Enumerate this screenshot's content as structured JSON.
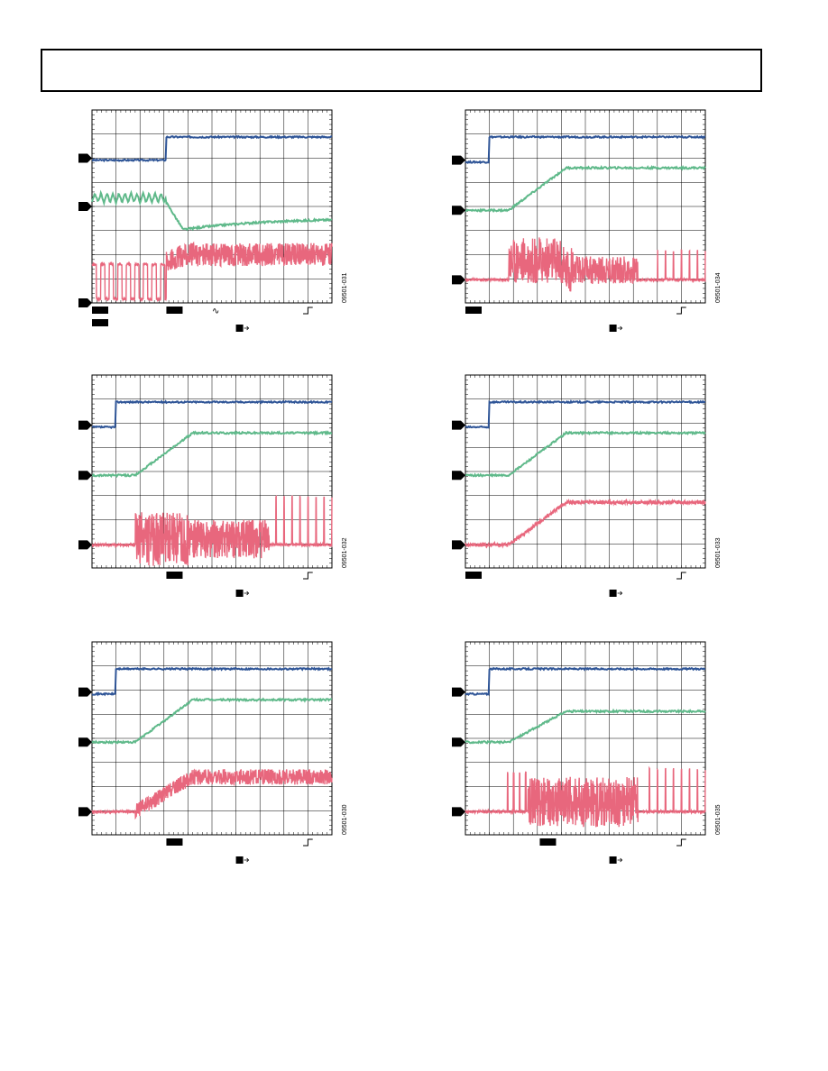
{
  "header": {
    "title": ""
  },
  "colors": {
    "blue": "#2f5597",
    "green": "#5fb98a",
    "pink": "#e8677d",
    "grid": "#000000"
  },
  "scopes": [
    {
      "id": "s1",
      "fig_id": "09501-031",
      "ch1_level": 0.86,
      "ch2_level": 0.44,
      "ch3_level": 0.22,
      "step_x": 0.31,
      "ch1_marker": 0.75,
      "ch2_marker": 0.5,
      "ch3_marker": 0.0,
      "pink_type": "pwm-then-band",
      "green_type": "triangle-dip",
      "bottom_badges": [
        {
          "x": 0.0
        },
        {
          "x": 0.31
        }
      ],
      "sine_icon": true,
      "has_bottom_badge_low": true
    },
    {
      "id": "s2",
      "fig_id": "09501-034",
      "ch1_level": 0.86,
      "ch2_level": 0.7,
      "ch3_level": 0.13,
      "step_x": 0.1,
      "ch1_marker": 0.74,
      "ch2_marker": 0.48,
      "ch3_marker": 0.12,
      "pink_type": "burst",
      "green_type": "ramp",
      "bottom_badges": [
        {
          "x": 0.0
        }
      ],
      "sine_icon": false
    },
    {
      "id": "s3",
      "fig_id": "09501-032",
      "ch1_level": 0.86,
      "ch2_level": 0.7,
      "ch3_level": 0.13,
      "step_x": 0.1,
      "ch1_marker": 0.74,
      "ch2_marker": 0.48,
      "ch3_marker": 0.12,
      "pink_type": "burst-long",
      "green_type": "ramp",
      "bottom_badges": [
        {
          "x": 0.31
        }
      ],
      "sine_icon": false
    },
    {
      "id": "s4",
      "fig_id": "09501-033",
      "ch1_level": 0.86,
      "ch2_level": 0.7,
      "ch3_level": 0.13,
      "step_x": 0.1,
      "ch1_marker": 0.74,
      "ch2_marker": 0.48,
      "ch3_marker": 0.12,
      "pink_type": "ramp-flat",
      "green_type": "ramp",
      "bottom_badges": [
        {
          "x": 0.0
        }
      ],
      "sine_icon": false
    },
    {
      "id": "s5",
      "fig_id": "09501-030",
      "ch1_level": 0.86,
      "ch2_level": 0.7,
      "ch3_level": 0.13,
      "step_x": 0.1,
      "ch1_marker": 0.74,
      "ch2_marker": 0.48,
      "ch3_marker": 0.12,
      "pink_type": "ramp-band",
      "green_type": "ramp",
      "bottom_badges": [
        {
          "x": 0.31
        }
      ],
      "sine_icon": false
    },
    {
      "id": "s6",
      "fig_id": "09501-035",
      "ch1_level": 0.86,
      "ch2_level": 0.64,
      "ch3_level": 0.13,
      "step_x": 0.1,
      "ch1_marker": 0.74,
      "ch2_marker": 0.48,
      "ch3_marker": 0.12,
      "pink_type": "burst-band",
      "green_type": "ramp",
      "bottom_badges": [
        {
          "x": 0.31
        }
      ],
      "sine_icon": false
    }
  ]
}
